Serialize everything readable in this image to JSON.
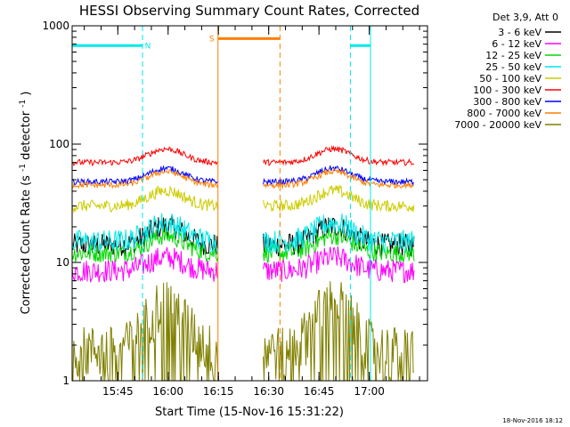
{
  "chart_data": {
    "type": "line",
    "title": "HESSI Observing Summary Count Rates, Corrected",
    "xlabel": "Start Time (15-Nov-16 15:31:22)",
    "ylabel_parts": [
      "Corrected Count Rate (s",
      "-1",
      " detector",
      "-1",
      ")"
    ],
    "yscale": "log",
    "ylim": [
      1,
      1000
    ],
    "xlim_min": [
      0,
      106
    ],
    "x_tick_labels": [
      "15:45",
      "16:00",
      "16:15",
      "16:30",
      "16:45",
      "17:00"
    ],
    "x_tick_minutes": [
      13.63,
      28.63,
      43.63,
      58.63,
      73.63,
      88.63
    ],
    "y_tick_labels": [
      "1",
      "10",
      "100",
      "1000"
    ],
    "y_tick_values": [
      1,
      10,
      100,
      1000
    ],
    "legend_header": "Det 3,9, Att 0",
    "series": [
      {
        "name": "3 - 6 keV",
        "color": "#000000",
        "base": 14,
        "bump": 1.45,
        "noise": 0.1
      },
      {
        "name": "6 - 12 keV",
        "color": "#ff00ff",
        "base": 8.5,
        "bump": 1.3,
        "noise": 0.1
      },
      {
        "name": "12 - 25 keV",
        "color": "#00d800",
        "base": 12,
        "bump": 1.4,
        "noise": 0.08
      },
      {
        "name": "25 - 50 keV",
        "color": "#00e8e8",
        "base": 15,
        "bump": 1.45,
        "noise": 0.1
      },
      {
        "name": "50 - 100 keV",
        "color": "#cccc00",
        "base": 30,
        "bump": 1.35,
        "noise": 0.05
      },
      {
        "name": "100 - 300 keV",
        "color": "#ff0000",
        "base": 70,
        "bump": 1.3,
        "noise": 0.025
      },
      {
        "name": "300 - 800 keV",
        "color": "#0000ff",
        "base": 48,
        "bump": 1.3,
        "noise": 0.025
      },
      {
        "name": "800 - 7000 keV",
        "color": "#ff7f00",
        "base": 45,
        "bump": 1.3,
        "noise": 0.025
      },
      {
        "name": "7000 - 20000 keV",
        "color": "#808000",
        "base": 1.6,
        "bump": 2.6,
        "noise": 0.25
      }
    ],
    "data_gaps_min": [
      [
        43.5,
        56.8
      ]
    ],
    "bump_center_min": [
      28,
      78
    ],
    "annotations": [
      {
        "label": "N",
        "kind": "night",
        "color": "#00e8e8",
        "start_min": 0,
        "end_min": 21,
        "level": 680
      },
      {
        "label": "",
        "kind": "night",
        "color": "#00e8e8",
        "start_min": 89,
        "end_min": 110,
        "level": 680
      },
      {
        "label": "S",
        "kind": "saa",
        "color": "#ff7f00",
        "start_min": 43.5,
        "end_min": 62,
        "level": 780
      }
    ]
  },
  "footer_timestamp": "18-Nov-2016 18:12"
}
